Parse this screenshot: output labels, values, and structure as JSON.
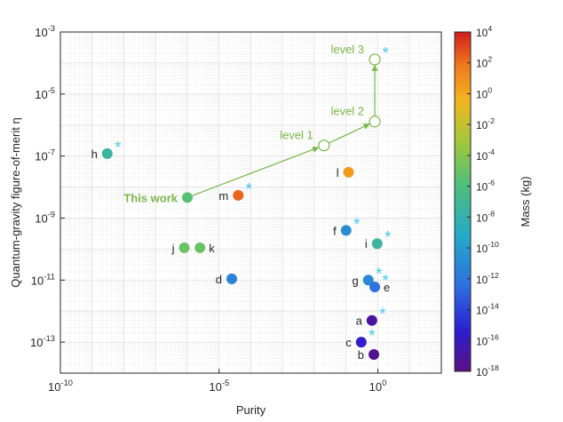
{
  "chart_data": {
    "type": "scatter",
    "xlabel": "Purity",
    "ylabel": "Quantum-gravity figure-of-merit η",
    "xscale": "log",
    "yscale": "log",
    "xlim": [
      1e-10,
      100
    ],
    "ylim": [
      1e-14,
      0.001
    ],
    "grid": true,
    "x_ticks": [
      {
        "value": 1e-10,
        "base": "10",
        "exp": "-10"
      },
      {
        "value": 1e-05,
        "base": "10",
        "exp": "-5"
      },
      {
        "value": 1,
        "base": "10",
        "exp": "0"
      }
    ],
    "y_ticks": [
      {
        "value": 1e-13,
        "base": "10",
        "exp": "-13"
      },
      {
        "value": 1e-11,
        "base": "10",
        "exp": "-11"
      },
      {
        "value": 1e-09,
        "base": "10",
        "exp": "-9"
      },
      {
        "value": 1e-07,
        "base": "10",
        "exp": "-7"
      },
      {
        "value": 1e-05,
        "base": "10",
        "exp": "-5"
      },
      {
        "value": 0.001,
        "base": "10",
        "exp": "-3"
      }
    ],
    "colorbar": {
      "label": "Mass (kg)",
      "scale": "log",
      "range": [
        1e-18,
        10000
      ],
      "ticks": [
        {
          "value": 10000,
          "base": "10",
          "exp": "4"
        },
        {
          "value": 100,
          "base": "10",
          "exp": "2"
        },
        {
          "value": 1,
          "base": "10",
          "exp": "0"
        },
        {
          "value": 0.01,
          "base": "10",
          "exp": "-2"
        },
        {
          "value": 0.0001,
          "base": "10",
          "exp": "-4"
        },
        {
          "value": 1e-06,
          "base": "10",
          "exp": "-6"
        },
        {
          "value": 1e-08,
          "base": "10",
          "exp": "-8"
        },
        {
          "value": 1e-10,
          "base": "10",
          "exp": "-10"
        },
        {
          "value": 1e-12,
          "base": "10",
          "exp": "-12"
        },
        {
          "value": 1e-14,
          "base": "10",
          "exp": "-14"
        },
        {
          "value": 1e-16,
          "base": "10",
          "exp": "-16"
        },
        {
          "value": 1e-18,
          "base": "10",
          "exp": "-18"
        }
      ]
    },
    "points": [
      {
        "label": "h",
        "purity": 3e-09,
        "eta": 1.2e-07,
        "mass_log10": -7.5,
        "starred": true,
        "label_side": "left"
      },
      {
        "label": "This work",
        "purity": 1e-06,
        "eta": 4.6e-09,
        "mass_log10": -5.6,
        "starred": false,
        "label_side": "left"
      },
      {
        "label": "m",
        "purity": 4e-05,
        "eta": 5.4e-09,
        "mass_log10": 2.3,
        "starred": true,
        "label_side": "left"
      },
      {
        "label": "l",
        "purity": 0.12,
        "eta": 3e-08,
        "mass_log10": 0.6,
        "starred": false,
        "label_side": "left"
      },
      {
        "label": "f",
        "purity": 0.1,
        "eta": 4e-10,
        "mass_log10": -10.8,
        "starred": true,
        "label_side": "left"
      },
      {
        "label": "i",
        "purity": 0.95,
        "eta": 1.5e-10,
        "mass_log10": -7.5,
        "starred": true,
        "label_side": "left"
      },
      {
        "label": "j",
        "purity": 8e-07,
        "eta": 1.1e-10,
        "mass_log10": -5.0,
        "starred": false,
        "label_side": "left"
      },
      {
        "label": "k",
        "purity": 2.5e-06,
        "eta": 1.1e-10,
        "mass_log10": -5.0,
        "starred": false,
        "label_side": "right"
      },
      {
        "label": "d",
        "purity": 2.5e-05,
        "eta": 1.1e-11,
        "mass_log10": -11.4,
        "starred": false,
        "label_side": "left"
      },
      {
        "label": "g",
        "purity": 0.5,
        "eta": 1e-11,
        "mass_log10": -11.0,
        "starred": true,
        "label_side": "left"
      },
      {
        "label": "e",
        "purity": 0.8,
        "eta": 6e-12,
        "mass_log10": -12.4,
        "starred": true,
        "label_side": "right"
      },
      {
        "label": "a",
        "purity": 0.65,
        "eta": 5e-13,
        "mass_log10": -17.0,
        "starred": true,
        "label_side": "left"
      },
      {
        "label": "c",
        "purity": 0.3,
        "eta": 1e-13,
        "mass_log10": -15.6,
        "starred": true,
        "label_side": "left"
      },
      {
        "label": "b",
        "purity": 0.75,
        "eta": 4e-14,
        "mass_log10": -17.5,
        "starred": false,
        "label_side": "left"
      }
    ],
    "roadmap": {
      "color": "#7ab648",
      "start": {
        "purity": 1e-06,
        "eta": 4.6e-09
      },
      "steps": [
        {
          "label": "level 1",
          "purity": 0.02,
          "eta": 2.2e-07
        },
        {
          "label": "level 2",
          "purity": 0.8,
          "eta": 1.3e-06
        },
        {
          "label": "level 3",
          "purity": 0.8,
          "eta": 0.00013
        }
      ],
      "star_color": "#3ec8e8"
    }
  }
}
